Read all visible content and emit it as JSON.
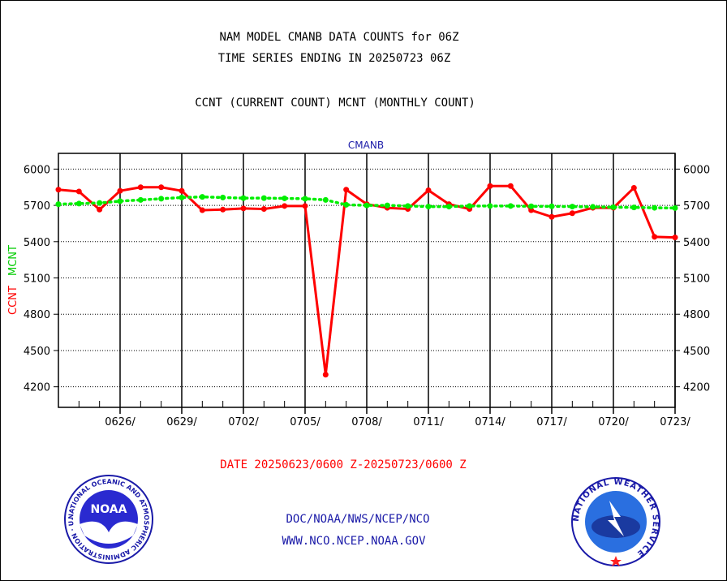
{
  "header": {
    "title_line1": "NAM MODEL CMANB DATA COUNTS for 06Z",
    "title_line2": "TIME SERIES ENDING IN 20250723 06Z",
    "subtitle": "CCNT (CURRENT COUNT) MCNT (MONTHLY COUNT)",
    "panel_label": "CMANB"
  },
  "footer": {
    "date_range": "DATE 20250623/0600 Z-20250723/0600 Z",
    "link1": "DOC/NOAA/NWS/NCEP/NCO",
    "link2": "WWW.NCO.NCEP.NOAA.GOV",
    "noaa_logo_text": "NOAA",
    "noaa_ring_text": "NATIONAL OCEANIC AND ATMOSPHERIC ADMINISTRATION · U.S. DEPARTMENT OF COMMERCE",
    "nws_ring_text": "NATIONAL WEATHER SERVICE"
  },
  "chart_data": {
    "type": "line",
    "ylabel_series1": "CCNT",
    "ylabel_series2": "MCNT",
    "ylim": [
      4030,
      6130
    ],
    "yticks": [
      4200,
      4500,
      4800,
      5100,
      5400,
      5700,
      6000
    ],
    "xticks": [
      "0626/",
      "0629/",
      "0702/",
      "0705/",
      "0708/",
      "0711/",
      "0714/",
      "0717/",
      "0720/",
      "0723/"
    ],
    "x_days": [
      0,
      1,
      2,
      3,
      4,
      5,
      6,
      7,
      8,
      9,
      10,
      11,
      12,
      13,
      14,
      15,
      16,
      17,
      18,
      19,
      20,
      21,
      22,
      23,
      24,
      25,
      26,
      27,
      28,
      29,
      30
    ],
    "series": [
      {
        "name": "CCNT",
        "color": "#ff0000",
        "values": [
          5830,
          5815,
          5665,
          5820,
          5850,
          5850,
          5820,
          5660,
          5665,
          5675,
          5670,
          5695,
          5695,
          4300,
          5830,
          5710,
          5680,
          5670,
          5825,
          5710,
          5670,
          5860,
          5860,
          5660,
          5605,
          5635,
          5680,
          5680,
          5845,
          5440,
          5435
        ]
      },
      {
        "name": "MCNT",
        "color": "#00ee00",
        "values": [
          5710,
          5715,
          5720,
          5735,
          5745,
          5755,
          5765,
          5770,
          5765,
          5760,
          5760,
          5758,
          5755,
          5745,
          5705,
          5700,
          5700,
          5695,
          5690,
          5690,
          5695,
          5695,
          5695,
          5692,
          5692,
          5690,
          5688,
          5685,
          5683,
          5680,
          5678
        ]
      }
    ],
    "grid": true
  }
}
